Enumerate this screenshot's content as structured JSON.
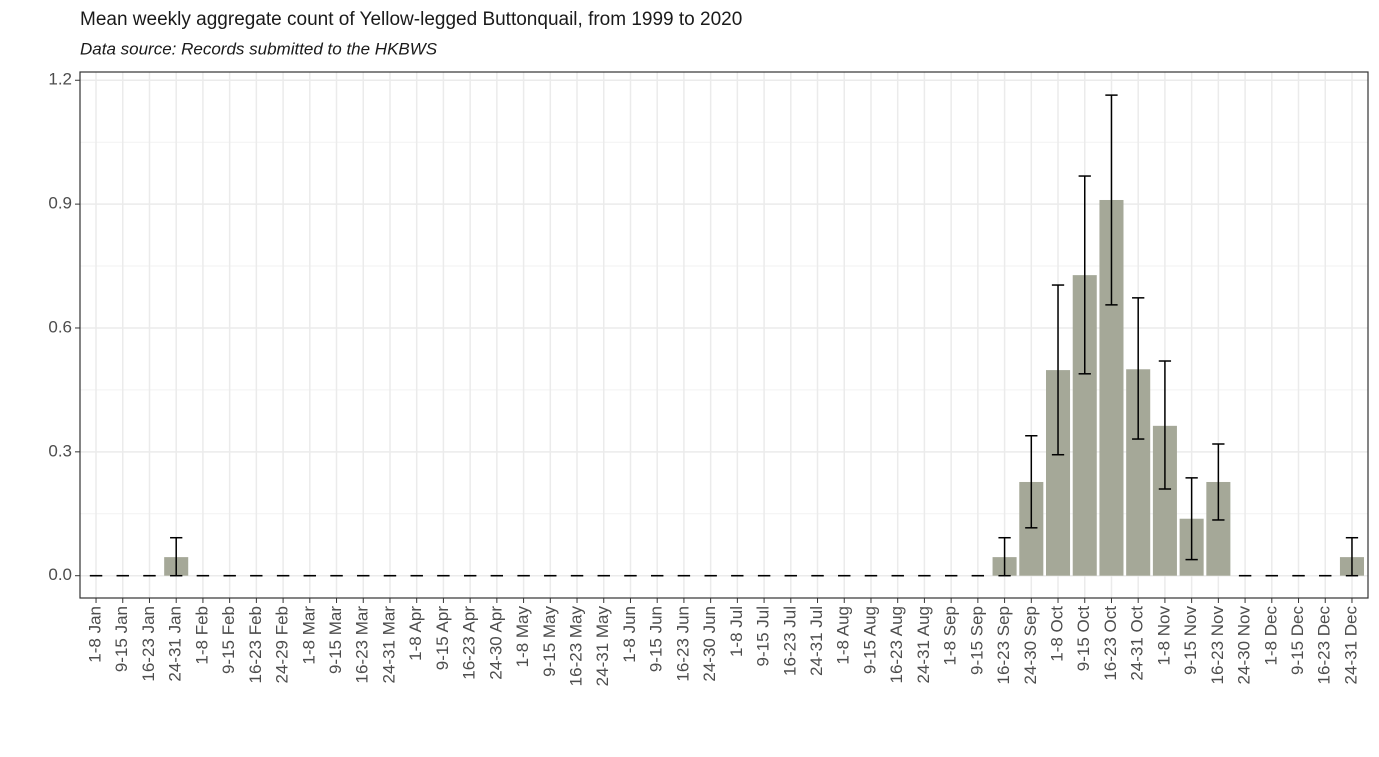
{
  "chart_data": {
    "type": "bar",
    "title": "Mean weekly aggregate count of Yellow-legged Buttonquail, from 1999 to 2020",
    "subtitle": "Data source: Records submitted to the HKBWS",
    "categories": [
      "1-8 Jan",
      "9-15 Jan",
      "16-23 Jan",
      "24-31 Jan",
      "1-8 Feb",
      "9-15 Feb",
      "16-23 Feb",
      "24-29 Feb",
      "1-8 Mar",
      "9-15 Mar",
      "16-23 Mar",
      "24-31 Mar",
      "1-8 Apr",
      "9-15 Apr",
      "16-23 Apr",
      "24-30 Apr",
      "1-8 May",
      "9-15 May",
      "16-23 May",
      "24-31 May",
      "1-8 Jun",
      "9-15 Jun",
      "16-23 Jun",
      "24-30 Jun",
      "1-8 Jul",
      "9-15 Jul",
      "16-23 Jul",
      "24-31 Jul",
      "1-8 Aug",
      "9-15 Aug",
      "16-23 Aug",
      "24-31 Aug",
      "1-8 Sep",
      "9-15 Sep",
      "16-23 Sep",
      "24-30 Sep",
      "1-8 Oct",
      "9-15 Oct",
      "16-23 Oct",
      "24-31 Oct",
      "1-8 Nov",
      "9-15 Nov",
      "16-23 Nov",
      "24-30 Nov",
      "1-8 Dec",
      "9-15 Dec",
      "16-23 Dec",
      "24-31 Dec"
    ],
    "values": [
      0,
      0,
      0,
      0.045,
      0,
      0,
      0,
      0,
      0,
      0,
      0,
      0,
      0,
      0,
      0,
      0,
      0,
      0,
      0,
      0,
      0,
      0,
      0,
      0,
      0,
      0,
      0,
      0,
      0,
      0,
      0,
      0,
      0,
      0,
      0.045,
      0.227,
      0.498,
      0.728,
      0.91,
      0.5,
      0.363,
      0.138,
      0.227,
      0,
      0,
      0,
      0,
      0.045
    ],
    "error_low": [
      0,
      0,
      0,
      0,
      0,
      0,
      0,
      0,
      0,
      0,
      0,
      0,
      0,
      0,
      0,
      0,
      0,
      0,
      0,
      0,
      0,
      0,
      0,
      0,
      0,
      0,
      0,
      0,
      0,
      0,
      0,
      0,
      0,
      0,
      0,
      0.116,
      0.293,
      0.489,
      0.656,
      0.331,
      0.21,
      0.039,
      0.135,
      0,
      0,
      0,
      0,
      0
    ],
    "error_high": [
      0,
      0,
      0,
      0.092,
      0,
      0,
      0,
      0,
      0,
      0,
      0,
      0,
      0,
      0,
      0,
      0,
      0,
      0,
      0,
      0,
      0,
      0,
      0,
      0,
      0,
      0,
      0,
      0,
      0,
      0,
      0,
      0,
      0,
      0,
      0.092,
      0.339,
      0.704,
      0.968,
      1.164,
      0.673,
      0.52,
      0.237,
      0.319,
      0,
      0,
      0,
      0,
      0.092
    ],
    "color": "#a5a898",
    "ylim": [
      -0.054,
      1.22
    ],
    "yticks": [
      {
        "value": 0,
        "label": "0.0"
      },
      0.3,
      0.6,
      0.9,
      1.2
    ],
    "grid": true
  }
}
